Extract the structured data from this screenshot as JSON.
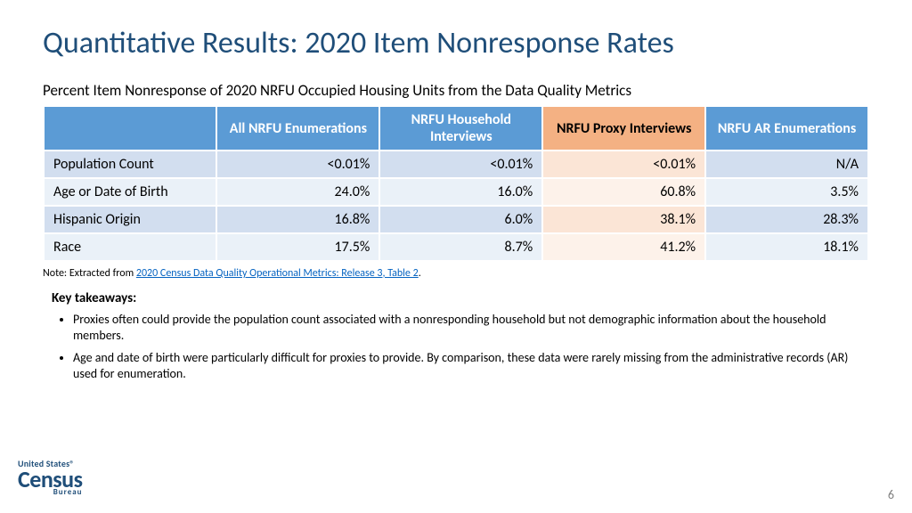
{
  "title": "Quantitative Results: 2020 Item Nonresponse Rates",
  "subtitle": "Percent Item Nonresponse of 2020 NRFU Occupied Housing Units from the Data Quality Metrics",
  "table": {
    "columns": [
      {
        "label": "All NRFU Enumerations",
        "hclass": "blue",
        "dclass": "b"
      },
      {
        "label": "NRFU Household Interviews",
        "hclass": "blue",
        "dclass": "b"
      },
      {
        "label": "NRFU Proxy Interviews",
        "hclass": "orange",
        "dclass": "o"
      },
      {
        "label": "NRFU AR Enumerations",
        "hclass": "blue",
        "dclass": "b"
      }
    ],
    "rows": [
      {
        "label": "Population Count",
        "cells": [
          "<0.01%",
          "<0.01%",
          "<0.01%",
          "N/A"
        ]
      },
      {
        "label": "Age or Date of Birth",
        "cells": [
          "24.0%",
          "16.0%",
          "60.8%",
          "3.5%"
        ]
      },
      {
        "label": "Hispanic Origin",
        "cells": [
          "16.8%",
          "6.0%",
          "38.1%",
          "28.3%"
        ]
      },
      {
        "label": "Race",
        "cells": [
          "17.5%",
          "8.7%",
          "41.2%",
          "18.1%"
        ]
      }
    ]
  },
  "note_prefix": "Note: Extracted from ",
  "note_link": "2020 Census Data Quality Operational Metrics: Release 3, Table 2",
  "note_suffix": ".",
  "takeaways_title": "Key takeaways:",
  "takeaways": [
    "Proxies often could provide the population count associated with a nonresponding household but not demographic information about the household members.",
    "Age and date of birth were particularly difficult for proxies to provide. By comparison, these data were rarely missing from the administrative records (AR) used for enumeration."
  ],
  "logo": {
    "line1": "United States®",
    "line2": "Census",
    "line3": "Bureau"
  },
  "pagenum": "6",
  "colors": {
    "title": "#1f4e79",
    "header_blue": "#5b9bd5",
    "header_orange": "#f4b183",
    "row_odd_blue": "#d2deef",
    "row_even_blue": "#eaf1f8",
    "row_odd_orange": "#fbe5d6",
    "row_even_orange": "#fdf2ea",
    "link": "#0563c1"
  }
}
